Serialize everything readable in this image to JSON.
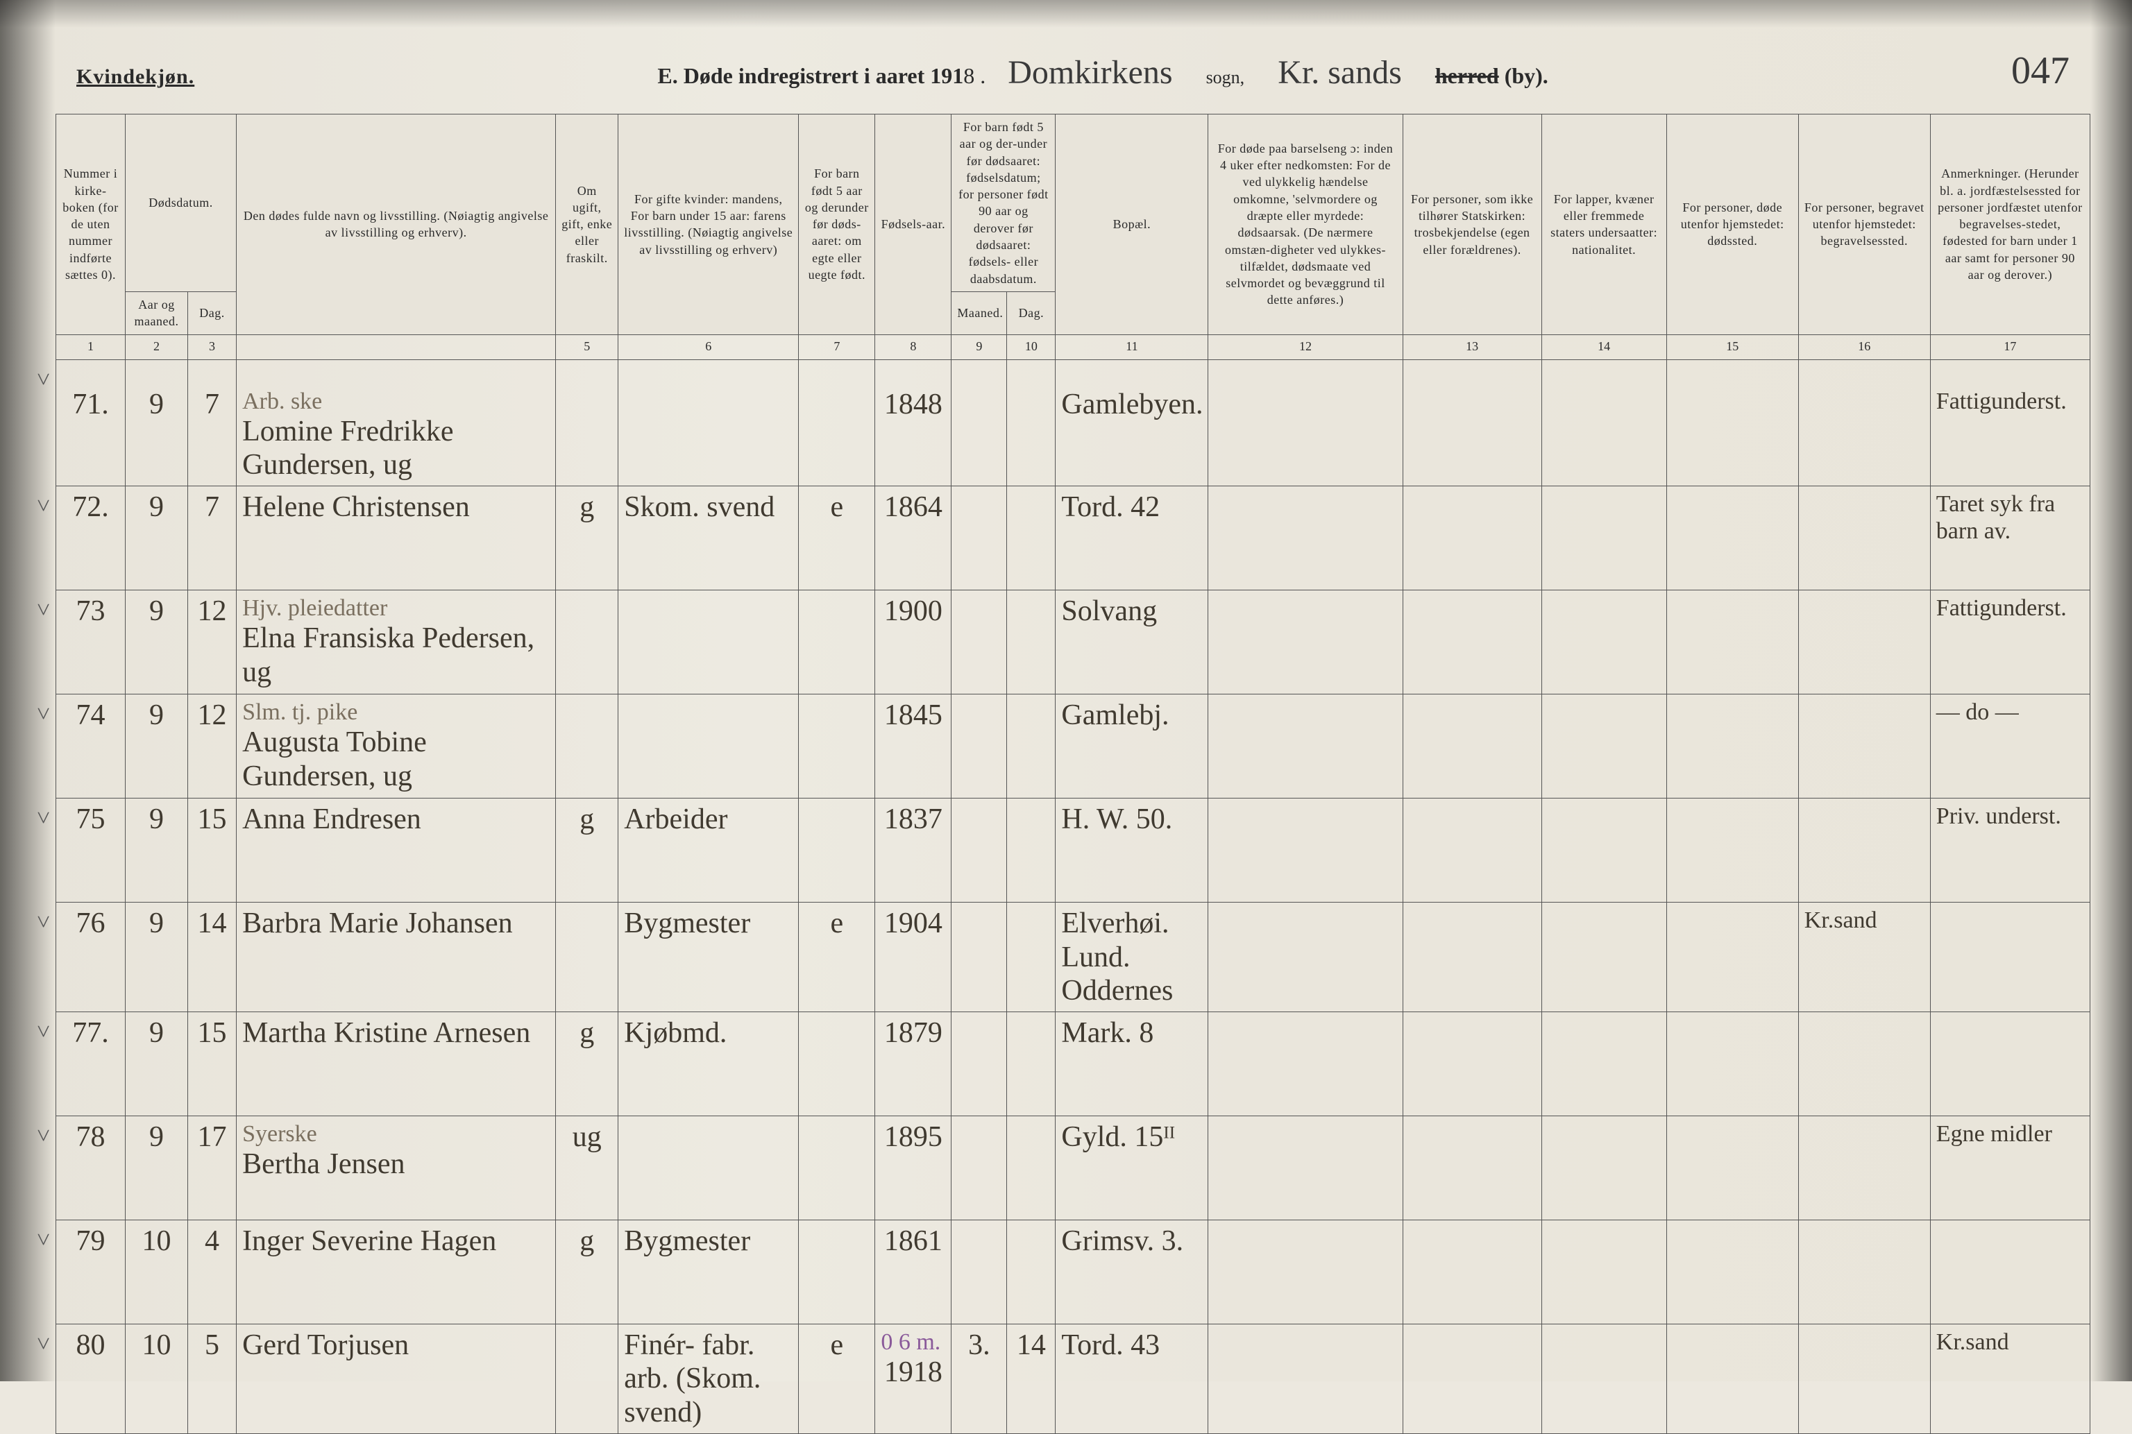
{
  "header": {
    "gender_label": "Kvindekjøn.",
    "main_title_prefix": "E.  Døde indregistrert i aaret 191",
    "year_suffix": "8 .",
    "parish_cursive": "Domkirkens",
    "sogn_label": "sogn,",
    "district_cursive": "Kr. sands",
    "herred_label_strike": "herred",
    "herred_label_rest": " (by).",
    "page_number": "047"
  },
  "columns": {
    "c1": "Nummer i kirke-boken (for de uten nummer indførte sættes 0).",
    "c2_top": "Dødsdatum.",
    "c2a": "Aar og maaned.",
    "c2b": "Dag.",
    "c4": "Den dødes fulde navn og livsstilling.\n(Nøiagtig angivelse av livsstilling og erhverv).",
    "c5": "Om ugift, gift, enke eller fraskilt.",
    "c6": "For gifte kvinder: mandens,\nFor barn under 15 aar: farens livsstilling.\n(Nøiagtig angivelse av livsstilling og erhverv)",
    "c7": "For barn født 5 aar og derunder før døds-aaret: om egte eller uegte født.",
    "c8": "Fødsels-aar.",
    "c9_top": "For barn født 5 aar og der-under før dødsaaret: fødselsdatum; for personer født 90 aar og derover før dødsaaret: fødsels- eller daabsdatum.",
    "c9a": "Maaned.",
    "c9b": "Dag.",
    "c11": "Bopæl.",
    "c12": "For døde paa barselseng ɔ: inden 4 uker efter nedkomsten:\nFor de ved ulykkelig hændelse omkomne, 'selvmordere og dræpte eller myrdede: dødsaarsak.\n(De nærmere omstæn-digheter ved ulykkes-tilfældet, dødsmaate ved selvmordet og bevæggrund til dette anføres.)",
    "c13": "For personer, som ikke tilhører Statskirken: trosbekjendelse (egen eller forældrenes).",
    "c14": "For lapper, kvæner eller fremmede staters undersaatter: nationalitet.",
    "c15": "For personer, døde utenfor hjemstedet: dødssted.",
    "c16": "For personer, begravet utenfor hjemstedet: begravelsessted.",
    "c17": "Anmerkninger.\n(Herunder bl. a. jordfæstelsessted for personer jordfæstet utenfor begravelses-stedet, fødested for barn under 1 aar samt for personer 90 aar og derover.)"
  },
  "colnums": [
    "1",
    "2",
    "3",
    "",
    "5",
    "6",
    "7",
    "8",
    "9",
    "10",
    "11",
    "12",
    "13",
    "14",
    "15",
    "16",
    "17"
  ],
  "rows": [
    {
      "num": "71.",
      "month": "9",
      "day": "7",
      "name_top": "Arb. ske",
      "name": "Lomine Fredrikke Gundersen, ug",
      "status": "",
      "spouse": "",
      "eg": "",
      "birth": "1848",
      "bm": "",
      "bd": "",
      "residence": "Gamlebyen.",
      "c12": "",
      "c13": "",
      "c14": "",
      "c15": "",
      "c16": "",
      "remark": "Fattigunderst."
    },
    {
      "num": "72.",
      "month": "9",
      "day": "7",
      "name_top": "",
      "name": "Helene Christensen",
      "status": "g",
      "spouse": "Skom. svend",
      "eg": "e",
      "birth": "1864",
      "bm": "",
      "bd": "",
      "residence": "Tord. 42",
      "c12": "",
      "c13": "",
      "c14": "",
      "c15": "",
      "c16": "",
      "remark": "Taret syk fra barn av."
    },
    {
      "num": "73",
      "month": "9",
      "day": "12",
      "name_top": "Hjv. pleiedatter",
      "name": "Elna Fransiska Pedersen, ug",
      "status": "",
      "spouse": "",
      "eg": "",
      "birth": "1900",
      "bm": "",
      "bd": "",
      "residence": "Solvang",
      "c12": "",
      "c13": "",
      "c14": "",
      "c15": "",
      "c16": "",
      "remark": "Fattigunderst."
    },
    {
      "num": "74",
      "month": "9",
      "day": "12",
      "name_top": "Slm. tj. pike",
      "name": "Augusta Tobine Gundersen, ug",
      "status": "",
      "spouse": "",
      "eg": "",
      "birth": "1845",
      "bm": "",
      "bd": "",
      "residence": "Gamlebj.",
      "c12": "",
      "c13": "",
      "c14": "",
      "c15": "",
      "c16": "",
      "remark": "— do —"
    },
    {
      "num": "75",
      "month": "9",
      "day": "15",
      "name_top": "",
      "name": "Anna Endresen",
      "status": "g",
      "spouse": "Arbeider",
      "eg": "",
      "birth": "1837",
      "bm": "",
      "bd": "",
      "residence": "H. W. 50.",
      "c12": "",
      "c13": "",
      "c14": "",
      "c15": "",
      "c16": "",
      "remark": "Priv. underst."
    },
    {
      "num": "76",
      "month": "9",
      "day": "14",
      "name_top": "",
      "name": "Barbra Marie Johansen",
      "status": "",
      "spouse": "Bygmester",
      "eg": "e",
      "birth": "1904",
      "bm": "",
      "bd": "",
      "residence": "Elverhøi. Lund. Oddernes",
      "c12": "",
      "c13": "",
      "c14": "",
      "c15": "",
      "c16": "Kr.sand",
      "remark": ""
    },
    {
      "num": "77.",
      "month": "9",
      "day": "15",
      "name_top": "",
      "name": "Martha Kristine Arnesen",
      "status": "g",
      "spouse": "Kjøbmd.",
      "eg": "",
      "birth": "1879",
      "bm": "",
      "bd": "",
      "residence": "Mark. 8",
      "c12": "",
      "c13": "",
      "c14": "",
      "c15": "",
      "c16": "",
      "remark": ""
    },
    {
      "num": "78",
      "month": "9",
      "day": "17",
      "name_top": "Syerske",
      "name": "Bertha Jensen",
      "status": "ug",
      "spouse": "",
      "eg": "",
      "birth": "1895",
      "bm": "",
      "bd": "",
      "residence": "Gyld. 15ᴵᴵ",
      "c12": "",
      "c13": "",
      "c14": "",
      "c15": "",
      "c16": "",
      "remark": "Egne midler"
    },
    {
      "num": "79",
      "month": "10",
      "day": "4",
      "name_top": "",
      "name": "Inger Severine Hagen",
      "status": "g",
      "spouse": "Bygmester",
      "eg": "",
      "birth": "1861",
      "bm": "",
      "bd": "",
      "residence": "Grimsv. 3.",
      "c12": "",
      "c13": "",
      "c14": "",
      "c15": "",
      "c16": "",
      "remark": ""
    },
    {
      "num": "80",
      "month": "10",
      "day": "5",
      "name_top": "",
      "name": "Gerd Torjusen",
      "status": "",
      "spouse": "Finér-\nfabr. arb.\n(Skom. svend)",
      "eg": "e",
      "birth": "1918",
      "bm": "3.",
      "bd": "14",
      "residence": "Tord. 43",
      "c12": "",
      "c13": "",
      "c14": "",
      "c15": "",
      "c16": "",
      "remark": "Kr.sand",
      "birth_note": "0 6 m."
    }
  ],
  "style": {
    "bg": "#ece8df",
    "border": "#555555",
    "ink": "#403a30",
    "header_font_size": 18,
    "hand_font_size": 42
  }
}
